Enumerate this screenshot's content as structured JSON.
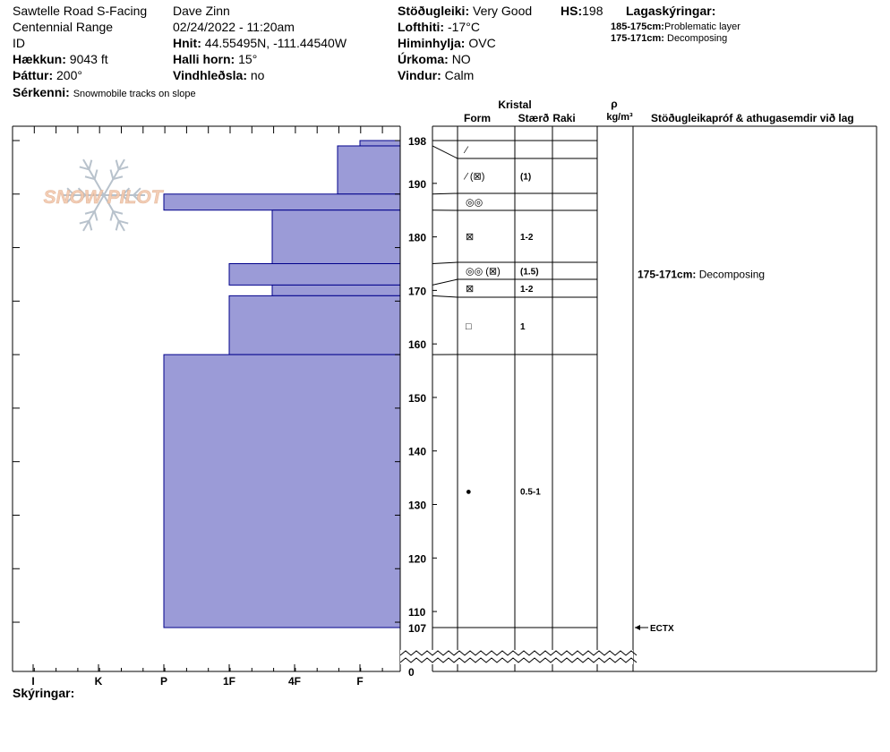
{
  "header": {
    "location": "Sawtelle Road S-Facing",
    "range": "Centennial Range",
    "id_label": "ID",
    "elevation": {
      "label": "Hækkun:",
      "value": "9043 ft"
    },
    "aspect": {
      "label": "Þáttur:",
      "value": "200°"
    },
    "observer": "Dave Zinn",
    "datetime": "02/24/2022 - 11:20am",
    "coords": {
      "label": "Hnit:",
      "value": "44.55495N, -111.44540W"
    },
    "slope": {
      "label": "Halli horn:",
      "value": "15°"
    },
    "wind_loading": {
      "label": "Vindhleðsla:",
      "value": "no"
    },
    "stability": {
      "label": "Stöðugleiki:",
      "value": "Very Good"
    },
    "hs": {
      "label": "HS:",
      "value": "198"
    },
    "air_temp": {
      "label": "Lofthiti:",
      "value": "-17°C"
    },
    "sky": {
      "label": "Himinhylja:",
      "value": "OVC"
    },
    "precip": {
      "label": "Úrkoma:",
      "value": "NO"
    },
    "wind": {
      "label": "Vindur:",
      "value": "Calm"
    },
    "features": {
      "label": "Sérkenni:",
      "value": "Snowmobile tracks on slope"
    },
    "layer_notes_title": "Lagaskýringar:",
    "layer_notes": [
      {
        "range": "185-175cm:",
        "text": "Problematic layer"
      },
      {
        "range": "175-171cm:",
        "text": "Decomposing"
      }
    ]
  },
  "logo_text": "SNOW PILOT",
  "columns": {
    "kristal": "Kristal",
    "form": "Form",
    "size": "Stærð",
    "moisture": "Raki",
    "rho": "ρ",
    "density_unit": "kg/m³",
    "tests_title": "Stöðugleikapróf & athugasemdir við lag"
  },
  "legend_label": "Skýringar:",
  "chart_data": {
    "type": "bar",
    "title": "",
    "xlabel": "",
    "ylabel": "",
    "x_categories": [
      "I",
      "K",
      "P",
      "1F",
      "4F",
      "F"
    ],
    "y_ticks": [
      0,
      107,
      110,
      120,
      130,
      140,
      150,
      160,
      170,
      180,
      190,
      198
    ],
    "ylim": [
      0,
      198
    ],
    "axis_break": "between 0 and 107 cm",
    "bar_color": "#9b9bd7",
    "bar_edge_color": "#00008b",
    "hardness_profile": [
      {
        "top": 198,
        "bottom": 197,
        "hardness": "F"
      },
      {
        "top": 197,
        "bottom": 188,
        "hardness": "F-"
      },
      {
        "top": 188,
        "bottom": 185,
        "hardness": "P"
      },
      {
        "top": 185,
        "bottom": 175,
        "hardness": "4F-"
      },
      {
        "top": 175,
        "bottom": 171,
        "hardness": "1F"
      },
      {
        "top": 171,
        "bottom": 169,
        "hardness": "4F-"
      },
      {
        "top": 169,
        "bottom": 158,
        "hardness": "1F"
      },
      {
        "top": 158,
        "bottom": 107,
        "hardness": "P"
      }
    ],
    "layers": [
      {
        "top": 198,
        "bottom": 197,
        "form": "⁄",
        "size": "",
        "moisture": ""
      },
      {
        "top": 197,
        "bottom": 188,
        "form": "⁄ (⊠)",
        "size": "(1)",
        "moisture": ""
      },
      {
        "top": 188,
        "bottom": 185,
        "form": "◎◎",
        "size": "",
        "moisture": ""
      },
      {
        "top": 185,
        "bottom": 175,
        "form": "⊠",
        "size": "1-2",
        "moisture": ""
      },
      {
        "top": 175,
        "bottom": 171,
        "form": "◎◎ (⊠)",
        "size": "(1.5)",
        "moisture": ""
      },
      {
        "top": 171,
        "bottom": 169,
        "form": "⊠",
        "size": "1-2",
        "moisture": ""
      },
      {
        "top": 169,
        "bottom": 158,
        "form": "□",
        "size": "1",
        "moisture": ""
      },
      {
        "top": 158,
        "bottom": 107,
        "form": "●",
        "size": "0.5-1",
        "moisture": ""
      }
    ],
    "comments": [
      {
        "depth": 173,
        "range": "175-171cm:",
        "text": "Decomposing"
      }
    ],
    "tests": [
      {
        "depth": 107,
        "result": "ECTX"
      }
    ]
  }
}
